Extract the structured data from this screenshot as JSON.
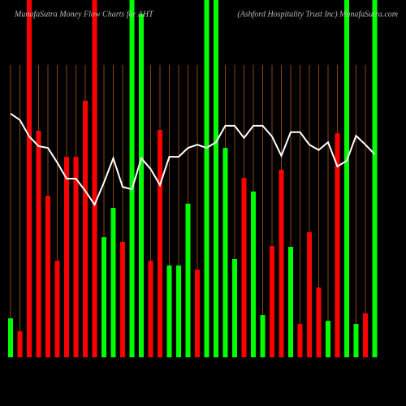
{
  "chart_data": {
    "type": "bar",
    "title": "MunafaSutra  Money Flow  Charts for AHT",
    "subtitle": "(Ashford Hospitality Trust Inc) MunafaSutra.com",
    "values": [
      10.9,
      7.3,
      100,
      63.4,
      45.2,
      27.0,
      56.1,
      56.1,
      71.8,
      100,
      33.6,
      41.8,
      32.3,
      100,
      96.1,
      27.0,
      63.6,
      25.7,
      25.7,
      43.0,
      24.5,
      100,
      100,
      58.6,
      27.5,
      50.2,
      46.4,
      11.8,
      31.1,
      52.5,
      30.9,
      9.3,
      35.0,
      19.5,
      10.2,
      62.7,
      100,
      9.3,
      12.3,
      100
    ],
    "colors": [
      "#00ff00",
      "#ff0000",
      "#ff0000",
      "#ff0000",
      "#ff0000",
      "#ff0000",
      "#ff0000",
      "#ff0000",
      "#ff0000",
      "#ff0000",
      "#00ff00",
      "#00ff00",
      "#ff0000",
      "#00ff00",
      "#00ff00",
      "#ff0000",
      "#ff0000",
      "#00ff00",
      "#00ff00",
      "#00ff00",
      "#ff0000",
      "#00ff00",
      "#00ff00",
      "#00ff00",
      "#00ff00",
      "#ff0000",
      "#00ff00",
      "#00ff00",
      "#ff0000",
      "#ff0000",
      "#00ff00",
      "#ff0000",
      "#ff0000",
      "#ff0000",
      "#00ff00",
      "#ff0000",
      "#00ff00",
      "#00ff00",
      "#ff0000",
      "#00ff00"
    ],
    "line": {
      "color": "#ffffff",
      "values": [
        68.2,
        66.4,
        61.8,
        59.1,
        58.6,
        54.5,
        50,
        50,
        46.6,
        42.7,
        48.9,
        55.7,
        47.7,
        47.0,
        55.7,
        52.7,
        48.2,
        56.1,
        56.1,
        58.6,
        59.5,
        58.6,
        60.2,
        64.8,
        64.8,
        61.4,
        64.8,
        64.8,
        61.8,
        56.4,
        63.0,
        63.0,
        59.5,
        58.0,
        60.2,
        53.4,
        55.0,
        62.0,
        59.5,
        56.8
      ]
    },
    "ylim": [
      0,
      100
    ],
    "grid_color": "#8b4513"
  }
}
